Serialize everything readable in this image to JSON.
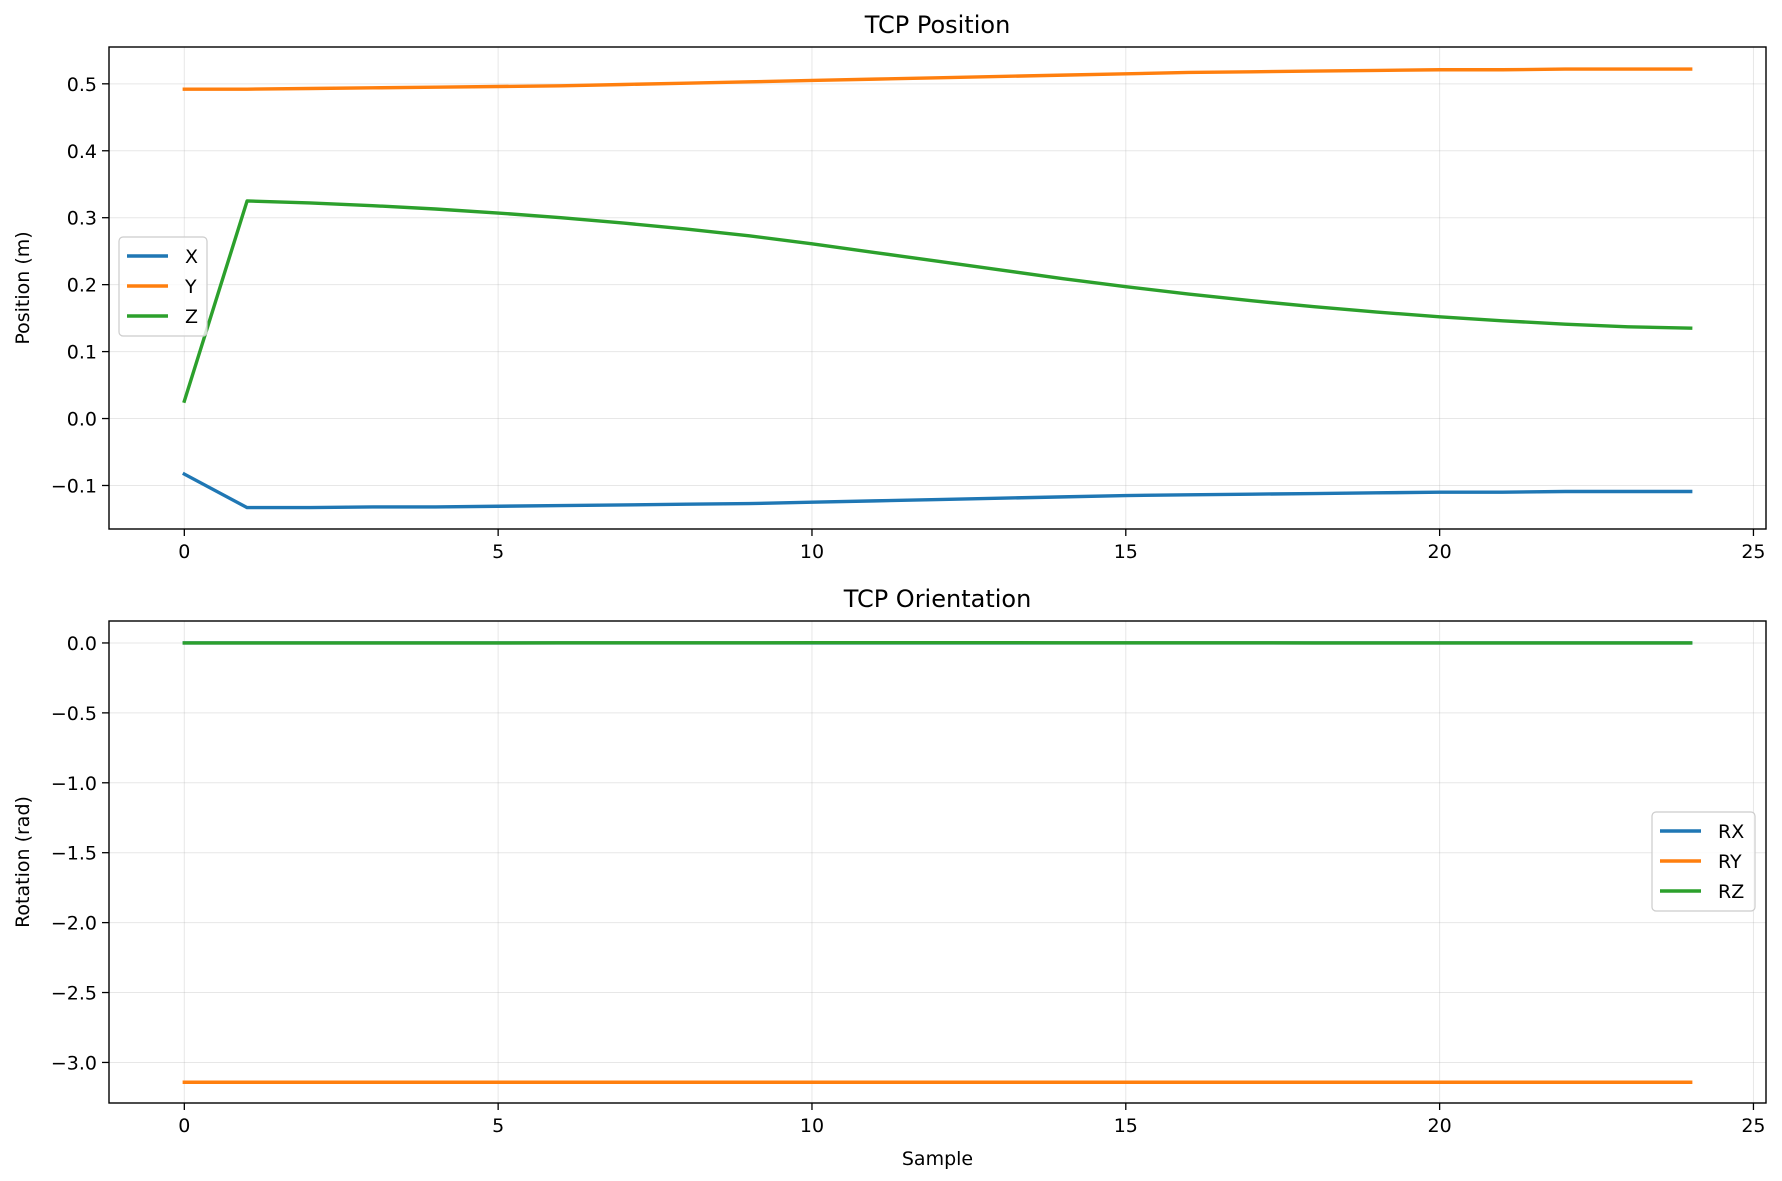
{
  "chart_data": [
    {
      "type": "line",
      "title": "TCP Position",
      "xlabel": "",
      "ylabel": "Position (m)",
      "xlim": [
        -1.2,
        25.2
      ],
      "ylim": [
        -0.165,
        0.555
      ],
      "xticks": [
        0,
        5,
        10,
        15,
        20,
        25
      ],
      "yticks": [
        -0.1,
        0.0,
        0.1,
        0.2,
        0.3,
        0.4,
        0.5
      ],
      "ytick_labels": [
        "−0.1",
        "0.0",
        "0.1",
        "0.2",
        "0.3",
        "0.4",
        "0.5"
      ],
      "grid": true,
      "legend_position": "center-left",
      "x": [
        0,
        1,
        2,
        3,
        4,
        5,
        6,
        7,
        8,
        9,
        10,
        11,
        12,
        13,
        14,
        15,
        16,
        17,
        18,
        19,
        20,
        21,
        22,
        23,
        24
      ],
      "series": [
        {
          "name": "X",
          "color": "#1f77b4",
          "values": [
            -0.083,
            -0.133,
            -0.133,
            -0.132,
            -0.132,
            -0.131,
            -0.13,
            -0.129,
            -0.128,
            -0.127,
            -0.125,
            -0.123,
            -0.121,
            -0.119,
            -0.117,
            -0.115,
            -0.114,
            -0.113,
            -0.112,
            -0.111,
            -0.11,
            -0.11,
            -0.109,
            -0.109,
            -0.109
          ]
        },
        {
          "name": "Y",
          "color": "#ff7f0e",
          "values": [
            0.492,
            0.492,
            0.493,
            0.494,
            0.495,
            0.496,
            0.497,
            0.499,
            0.501,
            0.503,
            0.505,
            0.507,
            0.509,
            0.511,
            0.513,
            0.515,
            0.517,
            0.518,
            0.519,
            0.52,
            0.521,
            0.521,
            0.522,
            0.522,
            0.522
          ]
        },
        {
          "name": "Z",
          "color": "#2ca02c",
          "values": [
            0.026,
            0.325,
            0.322,
            0.318,
            0.313,
            0.307,
            0.3,
            0.292,
            0.283,
            0.273,
            0.261,
            0.248,
            0.235,
            0.222,
            0.209,
            0.197,
            0.186,
            0.176,
            0.167,
            0.159,
            0.152,
            0.146,
            0.141,
            0.137,
            0.135
          ]
        }
      ]
    },
    {
      "type": "line",
      "title": "TCP Orientation",
      "xlabel": "Sample",
      "ylabel": "Rotation (rad)",
      "xlim": [
        -1.2,
        25.2
      ],
      "ylim": [
        -3.29,
        0.157
      ],
      "xticks": [
        0,
        5,
        10,
        15,
        20,
        25
      ],
      "yticks": [
        0.0,
        -0.5,
        -1.0,
        -1.5,
        -2.0,
        -2.5,
        -3.0
      ],
      "ytick_labels": [
        "0.0",
        "−0.5",
        "−1.0",
        "−1.5",
        "−2.0",
        "−2.5",
        "−3.0"
      ],
      "grid": true,
      "legend_position": "center-right",
      "x": [
        0,
        1,
        2,
        3,
        4,
        5,
        6,
        7,
        8,
        9,
        10,
        11,
        12,
        13,
        14,
        15,
        16,
        17,
        18,
        19,
        20,
        21,
        22,
        23,
        24
      ],
      "series": [
        {
          "name": "RX",
          "color": "#1f77b4",
          "values": [
            0,
            0,
            0,
            0,
            0,
            0,
            0,
            0,
            0,
            0,
            0,
            0,
            0,
            0,
            0,
            0,
            0,
            0,
            0,
            0,
            0,
            0,
            0,
            0,
            0
          ]
        },
        {
          "name": "RY",
          "color": "#ff7f0e",
          "values": [
            -3.1416,
            -3.1416,
            -3.1416,
            -3.1416,
            -3.1416,
            -3.1416,
            -3.1416,
            -3.1416,
            -3.1416,
            -3.1416,
            -3.1416,
            -3.1416,
            -3.1416,
            -3.1416,
            -3.1416,
            -3.1416,
            -3.1416,
            -3.1416,
            -3.1416,
            -3.1416,
            -3.1416,
            -3.1416,
            -3.1416,
            -3.1416,
            -3.1416
          ]
        },
        {
          "name": "RZ",
          "color": "#2ca02c",
          "values": [
            0.0,
            0.0,
            0.0,
            0.0,
            0.0,
            0.0,
            0.001,
            0.001,
            0.001,
            0.001,
            0.002,
            0.002,
            0.002,
            0.002,
            0.001,
            0.001,
            0.001,
            0.001,
            0.0,
            0.0,
            0.0,
            0.0,
            0.0,
            0.0,
            0.0
          ]
        }
      ]
    }
  ]
}
